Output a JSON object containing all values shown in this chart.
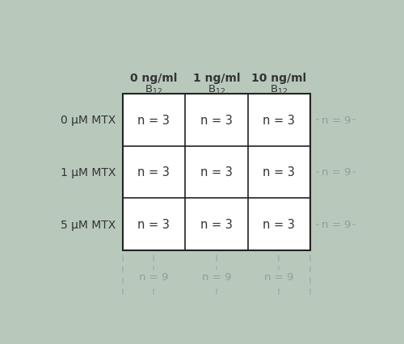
{
  "background_color": "#b8c9bc",
  "cell_bg": "#ffffff",
  "grid_color": "#222222",
  "dashed_color": "#aaaaaa",
  "text_color_dark": "#333333",
  "text_color_light": "#999999",
  "col_labels": [
    "0 ng/ml",
    "1 ng/ml",
    "10 ng/ml"
  ],
  "row_labels": [
    "0 μM MTX",
    "1 μM MTX",
    "5 μM MTX"
  ],
  "cell_text": "n = 3",
  "row_margin_text": "n = 9",
  "col_margin_text": "n = 9",
  "figsize": [
    5.0,
    4.27
  ],
  "dpi": 100
}
